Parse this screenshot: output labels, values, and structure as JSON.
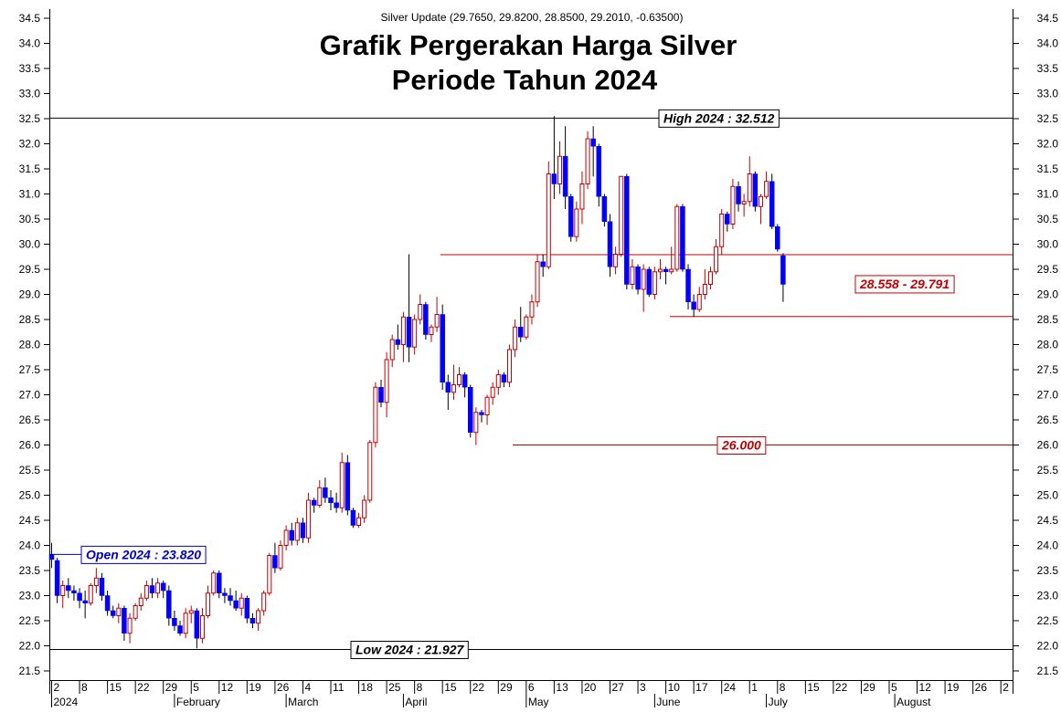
{
  "chart_data": {
    "type": "candlestick",
    "subtitle": "Silver Update (29.7650, 29.8200, 28.8500, 29.2010, -0.63500)",
    "title_line1": "Grafik Pergerakan Harga Silver",
    "title_line2": "Periode Tahun 2024",
    "ylim": [
      21.5,
      34.5
    ],
    "y_ticks": [
      "21.5",
      "22.0",
      "22.5",
      "23.0",
      "23.5",
      "24.0",
      "24.5",
      "25.0",
      "25.5",
      "26.0",
      "26.5",
      "27.0",
      "27.5",
      "28.0",
      "28.5",
      "29.0",
      "29.5",
      "30.0",
      "30.5",
      "31.0",
      "31.5",
      "32.0",
      "32.5",
      "33.0",
      "33.5",
      "34.0",
      "34.5"
    ],
    "x_day_labels": [
      "2",
      "8",
      "15",
      "22",
      "29",
      "5",
      "12",
      "19",
      "26",
      "4",
      "11",
      "18",
      "25",
      "8",
      "15",
      "22",
      "29",
      "6",
      "13",
      "20",
      "27",
      "3",
      "10",
      "17",
      "24",
      "1",
      "8",
      "15",
      "22",
      "29",
      "5",
      "12",
      "19",
      "26",
      "2"
    ],
    "x_month_labels": [
      "2024",
      "February",
      "March",
      "April",
      "May",
      "June",
      "July",
      "August"
    ],
    "colors": {
      "up": "#c00000",
      "down": "#0000ff",
      "high_line": "#000000",
      "level_line": "#c00000"
    },
    "annotations": [
      {
        "label": "High 2024 : 32.512",
        "value": 32.512,
        "color": "#000000"
      },
      {
        "label": "Low 2024 : 21.927",
        "value": 21.927,
        "color": "#000000"
      },
      {
        "label": "Open 2024 : 23.820",
        "value": 23.82,
        "color": "#0000cc"
      },
      {
        "label": "28.558 - 29.791",
        "value": 29.791,
        "color": "#c00000"
      },
      {
        "label": "26.000",
        "value": 26.0,
        "color": "#c00000"
      }
    ],
    "candles": [
      [
        23.82,
        24.05,
        23.55,
        23.72
      ],
      [
        23.7,
        23.75,
        22.85,
        23.0
      ],
      [
        23.0,
        23.3,
        22.75,
        23.2
      ],
      [
        23.2,
        23.35,
        22.95,
        23.1
      ],
      [
        23.1,
        23.2,
        22.9,
        23.05
      ],
      [
        23.05,
        23.15,
        22.75,
        22.9
      ],
      [
        22.9,
        23.1,
        22.55,
        22.85
      ],
      [
        22.85,
        23.25,
        22.8,
        23.2
      ],
      [
        23.2,
        23.55,
        23.05,
        23.35
      ],
      [
        23.35,
        23.45,
        22.9,
        23.0
      ],
      [
        23.0,
        23.1,
        22.6,
        22.7
      ],
      [
        22.7,
        22.8,
        22.55,
        22.6
      ],
      [
        22.6,
        22.85,
        22.45,
        22.75
      ],
      [
        22.75,
        22.8,
        22.1,
        22.25
      ],
      [
        22.25,
        22.65,
        22.05,
        22.55
      ],
      [
        22.55,
        22.85,
        22.5,
        22.8
      ],
      [
        22.8,
        23.05,
        22.7,
        22.95
      ],
      [
        22.95,
        23.3,
        22.9,
        23.2
      ],
      [
        23.2,
        23.35,
        22.95,
        23.05
      ],
      [
        23.05,
        23.35,
        22.95,
        23.25
      ],
      [
        23.25,
        23.3,
        22.95,
        23.1
      ],
      [
        23.1,
        23.2,
        22.4,
        22.55
      ],
      [
        22.55,
        22.7,
        22.3,
        22.4
      ],
      [
        22.4,
        22.5,
        22.2,
        22.25
      ],
      [
        22.25,
        22.75,
        22.15,
        22.65
      ],
      [
        22.65,
        22.8,
        22.45,
        22.7
      ],
      [
        22.7,
        22.75,
        21.95,
        22.15
      ],
      [
        22.15,
        22.75,
        22.05,
        22.6
      ],
      [
        22.6,
        23.2,
        22.55,
        23.05
      ],
      [
        23.05,
        23.5,
        23.0,
        23.45
      ],
      [
        23.45,
        23.5,
        22.95,
        23.05
      ],
      [
        23.05,
        23.15,
        22.85,
        23.0
      ],
      [
        23.0,
        23.15,
        22.8,
        22.9
      ],
      [
        22.9,
        23.1,
        22.7,
        22.75
      ],
      [
        22.75,
        23.05,
        22.6,
        22.95
      ],
      [
        22.95,
        23.0,
        22.45,
        22.55
      ],
      [
        22.55,
        22.65,
        22.35,
        22.45
      ],
      [
        22.45,
        22.75,
        22.3,
        22.7
      ],
      [
        22.7,
        23.1,
        22.6,
        23.05
      ],
      [
        23.05,
        23.85,
        23.0,
        23.8
      ],
      [
        23.8,
        24.05,
        23.45,
        23.55
      ],
      [
        23.55,
        24.1,
        23.5,
        24.0
      ],
      [
        24.0,
        24.4,
        23.9,
        24.3
      ],
      [
        24.3,
        24.45,
        24.0,
        24.1
      ],
      [
        24.1,
        24.55,
        24.0,
        24.45
      ],
      [
        24.45,
        24.55,
        24.05,
        24.15
      ],
      [
        24.15,
        25.05,
        24.05,
        24.9
      ],
      [
        24.9,
        24.95,
        24.65,
        24.8
      ],
      [
        24.8,
        25.3,
        24.75,
        25.15
      ],
      [
        25.15,
        25.35,
        24.85,
        24.95
      ],
      [
        24.95,
        25.1,
        24.7,
        24.85
      ],
      [
        24.85,
        25.05,
        24.65,
        24.75
      ],
      [
        24.75,
        25.85,
        24.65,
        25.65
      ],
      [
        25.65,
        25.8,
        24.6,
        24.7
      ],
      [
        24.7,
        24.75,
        24.35,
        24.4
      ],
      [
        24.4,
        24.65,
        24.35,
        24.55
      ],
      [
        24.55,
        25.0,
        24.45,
        24.9
      ],
      [
        24.9,
        26.1,
        24.85,
        26.05
      ],
      [
        26.05,
        27.25,
        25.95,
        27.15
      ],
      [
        27.15,
        27.3,
        26.75,
        26.85
      ],
      [
        26.85,
        27.85,
        26.55,
        27.7
      ],
      [
        27.7,
        28.2,
        27.55,
        28.1
      ],
      [
        28.1,
        28.4,
        27.9,
        28.0
      ],
      [
        28.0,
        28.65,
        27.65,
        28.55
      ],
      [
        28.55,
        29.8,
        27.65,
        27.95
      ],
      [
        27.95,
        28.6,
        27.8,
        28.5
      ],
      [
        28.5,
        29.0,
        28.4,
        28.8
      ],
      [
        28.8,
        28.85,
        28.1,
        28.2
      ],
      [
        28.2,
        28.4,
        28.05,
        28.35
      ],
      [
        28.35,
        28.95,
        28.25,
        28.6
      ],
      [
        28.6,
        28.8,
        27.1,
        27.25
      ],
      [
        27.25,
        27.4,
        26.7,
        27.05
      ],
      [
        27.05,
        27.6,
        26.9,
        27.2
      ],
      [
        27.2,
        27.55,
        27.15,
        27.4
      ],
      [
        27.4,
        27.45,
        26.95,
        27.15
      ],
      [
        27.15,
        27.2,
        26.15,
        26.25
      ],
      [
        26.25,
        26.75,
        26.0,
        26.65
      ],
      [
        26.65,
        26.7,
        26.45,
        26.6
      ],
      [
        26.6,
        27.0,
        26.4,
        26.95
      ],
      [
        26.95,
        27.25,
        26.8,
        27.15
      ],
      [
        27.15,
        27.5,
        27.0,
        27.4
      ],
      [
        27.4,
        27.45,
        27.15,
        27.25
      ],
      [
        27.25,
        28.0,
        27.15,
        27.9
      ],
      [
        27.9,
        28.5,
        27.75,
        28.35
      ],
      [
        28.35,
        28.75,
        28.05,
        28.15
      ],
      [
        28.15,
        28.6,
        28.1,
        28.55
      ],
      [
        28.55,
        29.0,
        28.4,
        28.85
      ],
      [
        28.85,
        29.8,
        28.75,
        29.65
      ],
      [
        29.65,
        29.8,
        29.35,
        29.55
      ],
      [
        29.55,
        31.65,
        29.5,
        31.4
      ],
      [
        31.4,
        32.55,
        30.9,
        31.2
      ],
      [
        31.2,
        32.05,
        31.0,
        31.75
      ],
      [
        31.75,
        32.35,
        30.7,
        30.95
      ],
      [
        30.95,
        31.0,
        30.05,
        30.15
      ],
      [
        30.15,
        30.85,
        30.05,
        30.7
      ],
      [
        30.7,
        31.45,
        30.4,
        31.2
      ],
      [
        31.2,
        32.25,
        31.1,
        32.1
      ],
      [
        32.1,
        32.35,
        31.35,
        31.95
      ],
      [
        31.95,
        32.0,
        30.75,
        30.95
      ],
      [
        30.95,
        31.0,
        30.35,
        30.45
      ],
      [
        30.45,
        30.6,
        29.35,
        29.55
      ],
      [
        29.55,
        29.95,
        29.4,
        29.8
      ],
      [
        29.8,
        31.35,
        29.75,
        31.35
      ],
      [
        31.35,
        31.4,
        29.1,
        29.2
      ],
      [
        29.2,
        29.7,
        29.1,
        29.55
      ],
      [
        29.55,
        29.6,
        29.0,
        29.1
      ],
      [
        29.1,
        29.6,
        28.65,
        29.5
      ],
      [
        29.5,
        29.55,
        28.95,
        29.0
      ],
      [
        29.0,
        29.55,
        28.9,
        29.45
      ],
      [
        29.45,
        29.7,
        29.3,
        29.5
      ],
      [
        29.5,
        29.55,
        29.2,
        29.45
      ],
      [
        29.45,
        29.95,
        29.4,
        29.5
      ],
      [
        29.5,
        30.8,
        29.45,
        30.75
      ],
      [
        30.75,
        30.8,
        29.45,
        29.5
      ],
      [
        29.5,
        29.6,
        28.7,
        28.85
      ],
      [
        28.85,
        29.0,
        28.55,
        28.7
      ],
      [
        28.7,
        29.15,
        28.65,
        29.0
      ],
      [
        29.0,
        29.5,
        28.9,
        29.2
      ],
      [
        29.2,
        29.55,
        29.1,
        29.45
      ],
      [
        29.45,
        30.1,
        29.4,
        29.95
      ],
      [
        29.95,
        30.7,
        29.8,
        30.6
      ],
      [
        30.6,
        30.65,
        30.25,
        30.4
      ],
      [
        30.4,
        31.3,
        30.3,
        31.15
      ],
      [
        31.15,
        31.25,
        30.65,
        30.8
      ],
      [
        30.8,
        31.0,
        30.55,
        30.85
      ],
      [
        30.85,
        31.75,
        30.75,
        31.4
      ],
      [
        31.4,
        31.45,
        30.65,
        30.75
      ],
      [
        30.75,
        31.0,
        30.4,
        30.95
      ],
      [
        30.95,
        31.45,
        30.9,
        31.25
      ],
      [
        31.25,
        31.4,
        30.3,
        30.35
      ],
      [
        30.35,
        30.4,
        29.85,
        29.9
      ],
      [
        29.77,
        29.82,
        28.85,
        29.2
      ]
    ]
  }
}
